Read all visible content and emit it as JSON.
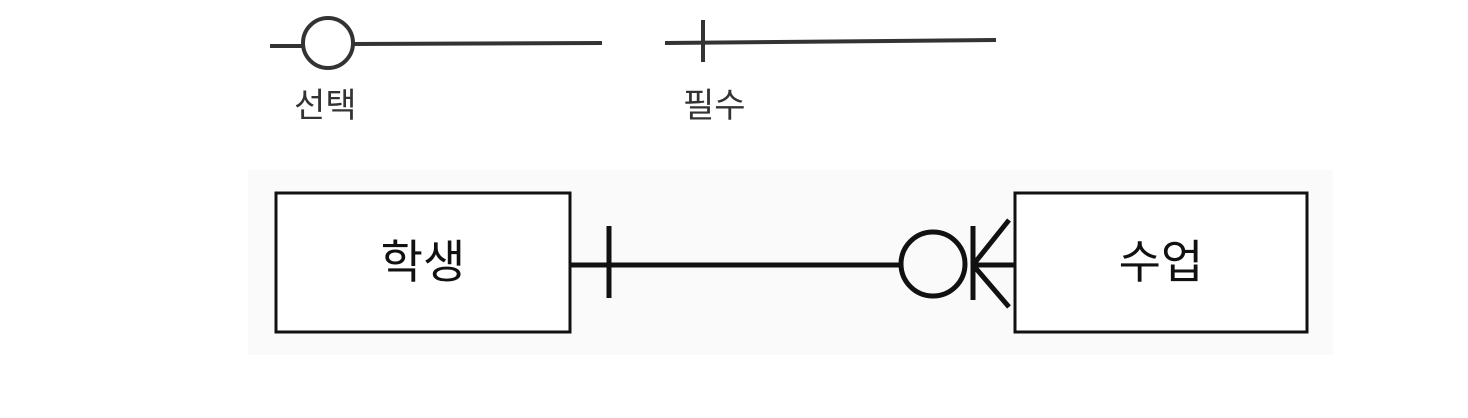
{
  "legend": {
    "optional_label": "선택",
    "mandatory_label": "필수"
  },
  "entities": {
    "student": "학생",
    "class": "수업"
  },
  "colors": {
    "background": "#ffffff",
    "panel": "#fafafa",
    "stroke": "#111111",
    "legend_stroke": "#333333"
  }
}
